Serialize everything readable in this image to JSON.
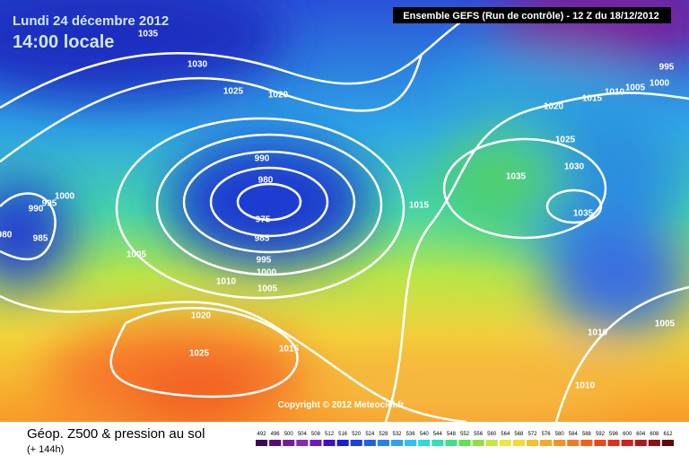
{
  "header": {
    "date": "Lundi 24 décembre 2012",
    "time": "14:00 locale",
    "run": "Ensemble GEFS (Run de contrôle)  -  12 Z du 18/12/2012"
  },
  "copyright": "Copyright © 2012 Meteociel.fr",
  "legend": {
    "title": "Géop. Z500 & pression au sol",
    "lead": "(+ 144h)",
    "scale": [
      492,
      496,
      500,
      504,
      508,
      512,
      516,
      520,
      524,
      528,
      532,
      536,
      540,
      544,
      548,
      552,
      556,
      560,
      564,
      568,
      572,
      576,
      580,
      584,
      588,
      592,
      596,
      600,
      604,
      608,
      612
    ]
  },
  "isobar_labels": [
    "1035",
    "1030",
    "1025",
    "1020",
    "990",
    "980",
    "975",
    "985",
    "995",
    "1000",
    "1005",
    "1010",
    "1005",
    "1020",
    "1025",
    "1015",
    "1000",
    "995",
    "990",
    "985",
    "980",
    "1015",
    "1035",
    "1030",
    "1035",
    "1025",
    "1020",
    "1015",
    "1010",
    "1005",
    "1000",
    "995",
    "1005",
    "1010",
    "1010"
  ]
}
